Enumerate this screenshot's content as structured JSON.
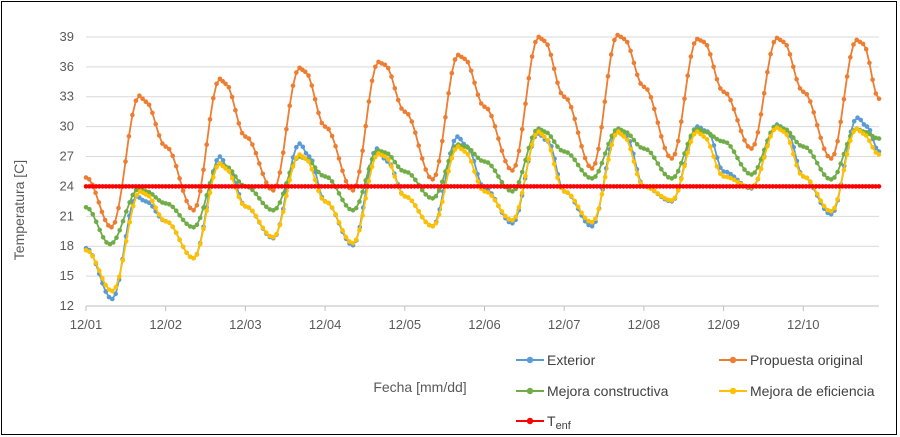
{
  "chart_data": {
    "type": "line",
    "title": "",
    "xlabel": "Fecha [mm/dd]",
    "ylabel": "Temperatura [C]",
    "ylim": [
      12,
      40.5
    ],
    "yticks": [
      12,
      15,
      18,
      21,
      24,
      27,
      30,
      33,
      36,
      39
    ],
    "xlim": [
      0,
      9.95
    ],
    "xticks": [
      {
        "x": 0,
        "label": "12/01"
      },
      {
        "x": 1,
        "label": "12/02"
      },
      {
        "x": 2,
        "label": "12/03"
      },
      {
        "x": 3,
        "label": "12/04"
      },
      {
        "x": 4,
        "label": "12/05"
      },
      {
        "x": 5,
        "label": "12/06"
      },
      {
        "x": 6,
        "label": "12/07"
      },
      {
        "x": 7,
        "label": "12/08"
      },
      {
        "x": 8,
        "label": "12/09"
      },
      {
        "x": 9,
        "label": "12/10"
      }
    ],
    "grid": "horizontal",
    "legend_position": "bottom-right",
    "series": [
      {
        "name": "Exterior",
        "color": "#5B9BD5",
        "x": [
          0,
          0.33,
          0.63,
          0.75,
          1.0,
          1.35,
          1.68,
          1.8,
          2.0,
          2.35,
          2.68,
          2.8,
          3.0,
          3.35,
          3.65,
          3.78,
          4.0,
          4.35,
          4.66,
          4.78,
          5.0,
          5.35,
          5.67,
          5.8,
          6.0,
          6.35,
          6.66,
          6.78,
          7.0,
          7.35,
          7.67,
          7.8,
          8.0,
          8.35,
          8.67,
          8.8,
          9.0,
          9.35,
          9.68,
          9.8,
          9.95
        ],
        "y": [
          17.8,
          12.7,
          23.0,
          22.5,
          20.5,
          16.8,
          27.0,
          25.5,
          22.0,
          18.8,
          28.3,
          27.0,
          22.5,
          18.1,
          27.8,
          26.5,
          23.0,
          20.0,
          29.0,
          28.0,
          23.8,
          20.3,
          29.3,
          28.5,
          23.5,
          20.0,
          29.5,
          29.0,
          24.0,
          22.5,
          30.0,
          29.5,
          25.5,
          23.8,
          30.2,
          29.5,
          25.0,
          21.2,
          30.9,
          30.0,
          27.5
        ]
      },
      {
        "name": "Propuesta original",
        "color": "#ED7D31",
        "x": [
          0,
          0.32,
          0.67,
          0.75,
          1.0,
          1.35,
          1.68,
          1.75,
          2.0,
          2.35,
          2.68,
          2.75,
          3.0,
          3.35,
          3.67,
          3.75,
          4.0,
          4.35,
          4.67,
          4.75,
          5.0,
          5.35,
          5.68,
          5.75,
          6.0,
          6.35,
          6.67,
          6.75,
          7.0,
          7.35,
          7.67,
          7.75,
          8.0,
          8.35,
          8.67,
          8.75,
          9.0,
          9.35,
          9.67,
          9.75,
          9.95
        ],
        "y": [
          24.9,
          19.9,
          33.1,
          32.5,
          28.0,
          21.6,
          34.8,
          34.3,
          29.0,
          23.6,
          35.9,
          35.5,
          30.0,
          23.6,
          36.5,
          36.2,
          31.5,
          24.7,
          37.2,
          36.8,
          32.0,
          25.6,
          39.0,
          38.6,
          33.0,
          25.8,
          39.2,
          38.8,
          34.0,
          26.8,
          38.8,
          38.5,
          33.5,
          27.8,
          38.9,
          38.5,
          33.5,
          26.8,
          38.7,
          38.3,
          32.8
        ]
      },
      {
        "name": "Mejora constructiva",
        "color": "#70AD47",
        "x": [
          0,
          0.3,
          0.67,
          0.75,
          1.0,
          1.35,
          1.68,
          1.75,
          2.0,
          2.35,
          2.68,
          2.75,
          3.0,
          3.35,
          3.67,
          3.75,
          4.0,
          4.35,
          4.67,
          4.75,
          5.0,
          5.35,
          5.68,
          5.75,
          6.0,
          6.35,
          6.68,
          6.75,
          7.0,
          7.35,
          7.67,
          7.75,
          8.0,
          8.35,
          8.67,
          8.75,
          9.0,
          9.35,
          9.67,
          9.75,
          9.95
        ],
        "y": [
          21.9,
          18.2,
          23.8,
          23.5,
          22.3,
          19.9,
          26.3,
          26.0,
          24.0,
          21.6,
          27.0,
          26.8,
          25.0,
          21.6,
          27.6,
          27.4,
          25.5,
          22.8,
          28.2,
          28.0,
          26.5,
          23.5,
          29.8,
          29.5,
          27.5,
          24.8,
          29.8,
          29.5,
          27.8,
          24.8,
          29.8,
          29.5,
          28.5,
          25.2,
          30.1,
          29.8,
          28.0,
          24.7,
          29.8,
          29.5,
          28.8
        ]
      },
      {
        "name": "Mejora de eficiencia",
        "color": "#FFC000",
        "x": [
          0,
          0.33,
          0.68,
          0.75,
          1.0,
          1.35,
          1.68,
          1.75,
          2.0,
          2.35,
          2.68,
          2.75,
          3.0,
          3.35,
          3.67,
          3.75,
          4.0,
          4.35,
          4.67,
          4.75,
          5.0,
          5.35,
          5.68,
          5.75,
          6.0,
          6.35,
          6.68,
          6.75,
          7.0,
          7.35,
          7.67,
          7.75,
          8.0,
          8.35,
          8.67,
          8.75,
          9.0,
          9.35,
          9.67,
          9.75,
          9.95
        ],
        "y": [
          17.6,
          13.5,
          23.5,
          23.2,
          20.5,
          16.8,
          26.3,
          25.8,
          22.0,
          18.9,
          27.2,
          26.8,
          22.5,
          18.3,
          27.3,
          27.0,
          23.0,
          20.0,
          28.0,
          27.5,
          23.5,
          20.6,
          29.5,
          29.0,
          23.5,
          20.4,
          29.5,
          29.0,
          24.0,
          22.6,
          29.5,
          29.0,
          25.0,
          23.9,
          29.9,
          29.5,
          25.0,
          21.5,
          29.8,
          29.3,
          27.2
        ]
      },
      {
        "name": "Tenf",
        "color": "#FF0000",
        "x": [
          0,
          9.95
        ],
        "y": [
          24,
          24
        ]
      }
    ]
  }
}
